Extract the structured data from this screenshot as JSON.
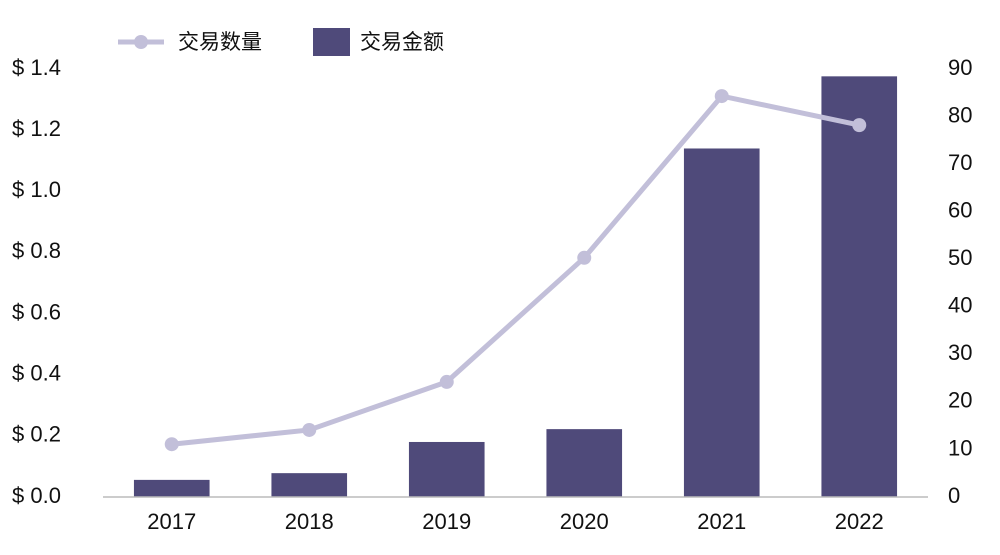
{
  "chart_data": {
    "type": "bar-line",
    "categories": [
      "2017",
      "2018",
      "2019",
      "2020",
      "2021",
      "2022"
    ],
    "series": [
      {
        "name": "交易数量",
        "type": "line",
        "axis": "y2",
        "color": "#c2bfd9",
        "values": [
          11.1,
          14.1,
          24.2,
          50.3,
          84.3,
          78.2
        ]
      },
      {
        "name": "交易金额",
        "type": "bar",
        "axis": "y",
        "color": "#4f4a7a",
        "values": [
          0.056,
          0.078,
          0.18,
          0.222,
          1.14,
          1.376
        ]
      }
    ],
    "ylim": [
      0,
      1.4
    ],
    "yticks": [
      {
        "value": 0,
        "label": "$ 0.0"
      },
      {
        "value": 0.2,
        "label": "$ 0.2"
      },
      {
        "value": 0.4,
        "label": "$ 0.4"
      },
      {
        "value": 0.6,
        "label": "$ 0.6"
      },
      {
        "value": 0.8,
        "label": "$ 0.8"
      },
      {
        "value": 1.0,
        "label": "$ 1.0"
      },
      {
        "value": 1.2,
        "label": "$ 1.2"
      },
      {
        "value": 1.4,
        "label": "$ 1.4"
      }
    ],
    "y2lim": [
      0,
      90
    ],
    "y2ticks": [
      0,
      10,
      20,
      30,
      40,
      50,
      60,
      70,
      80,
      90
    ],
    "grid": false
  }
}
